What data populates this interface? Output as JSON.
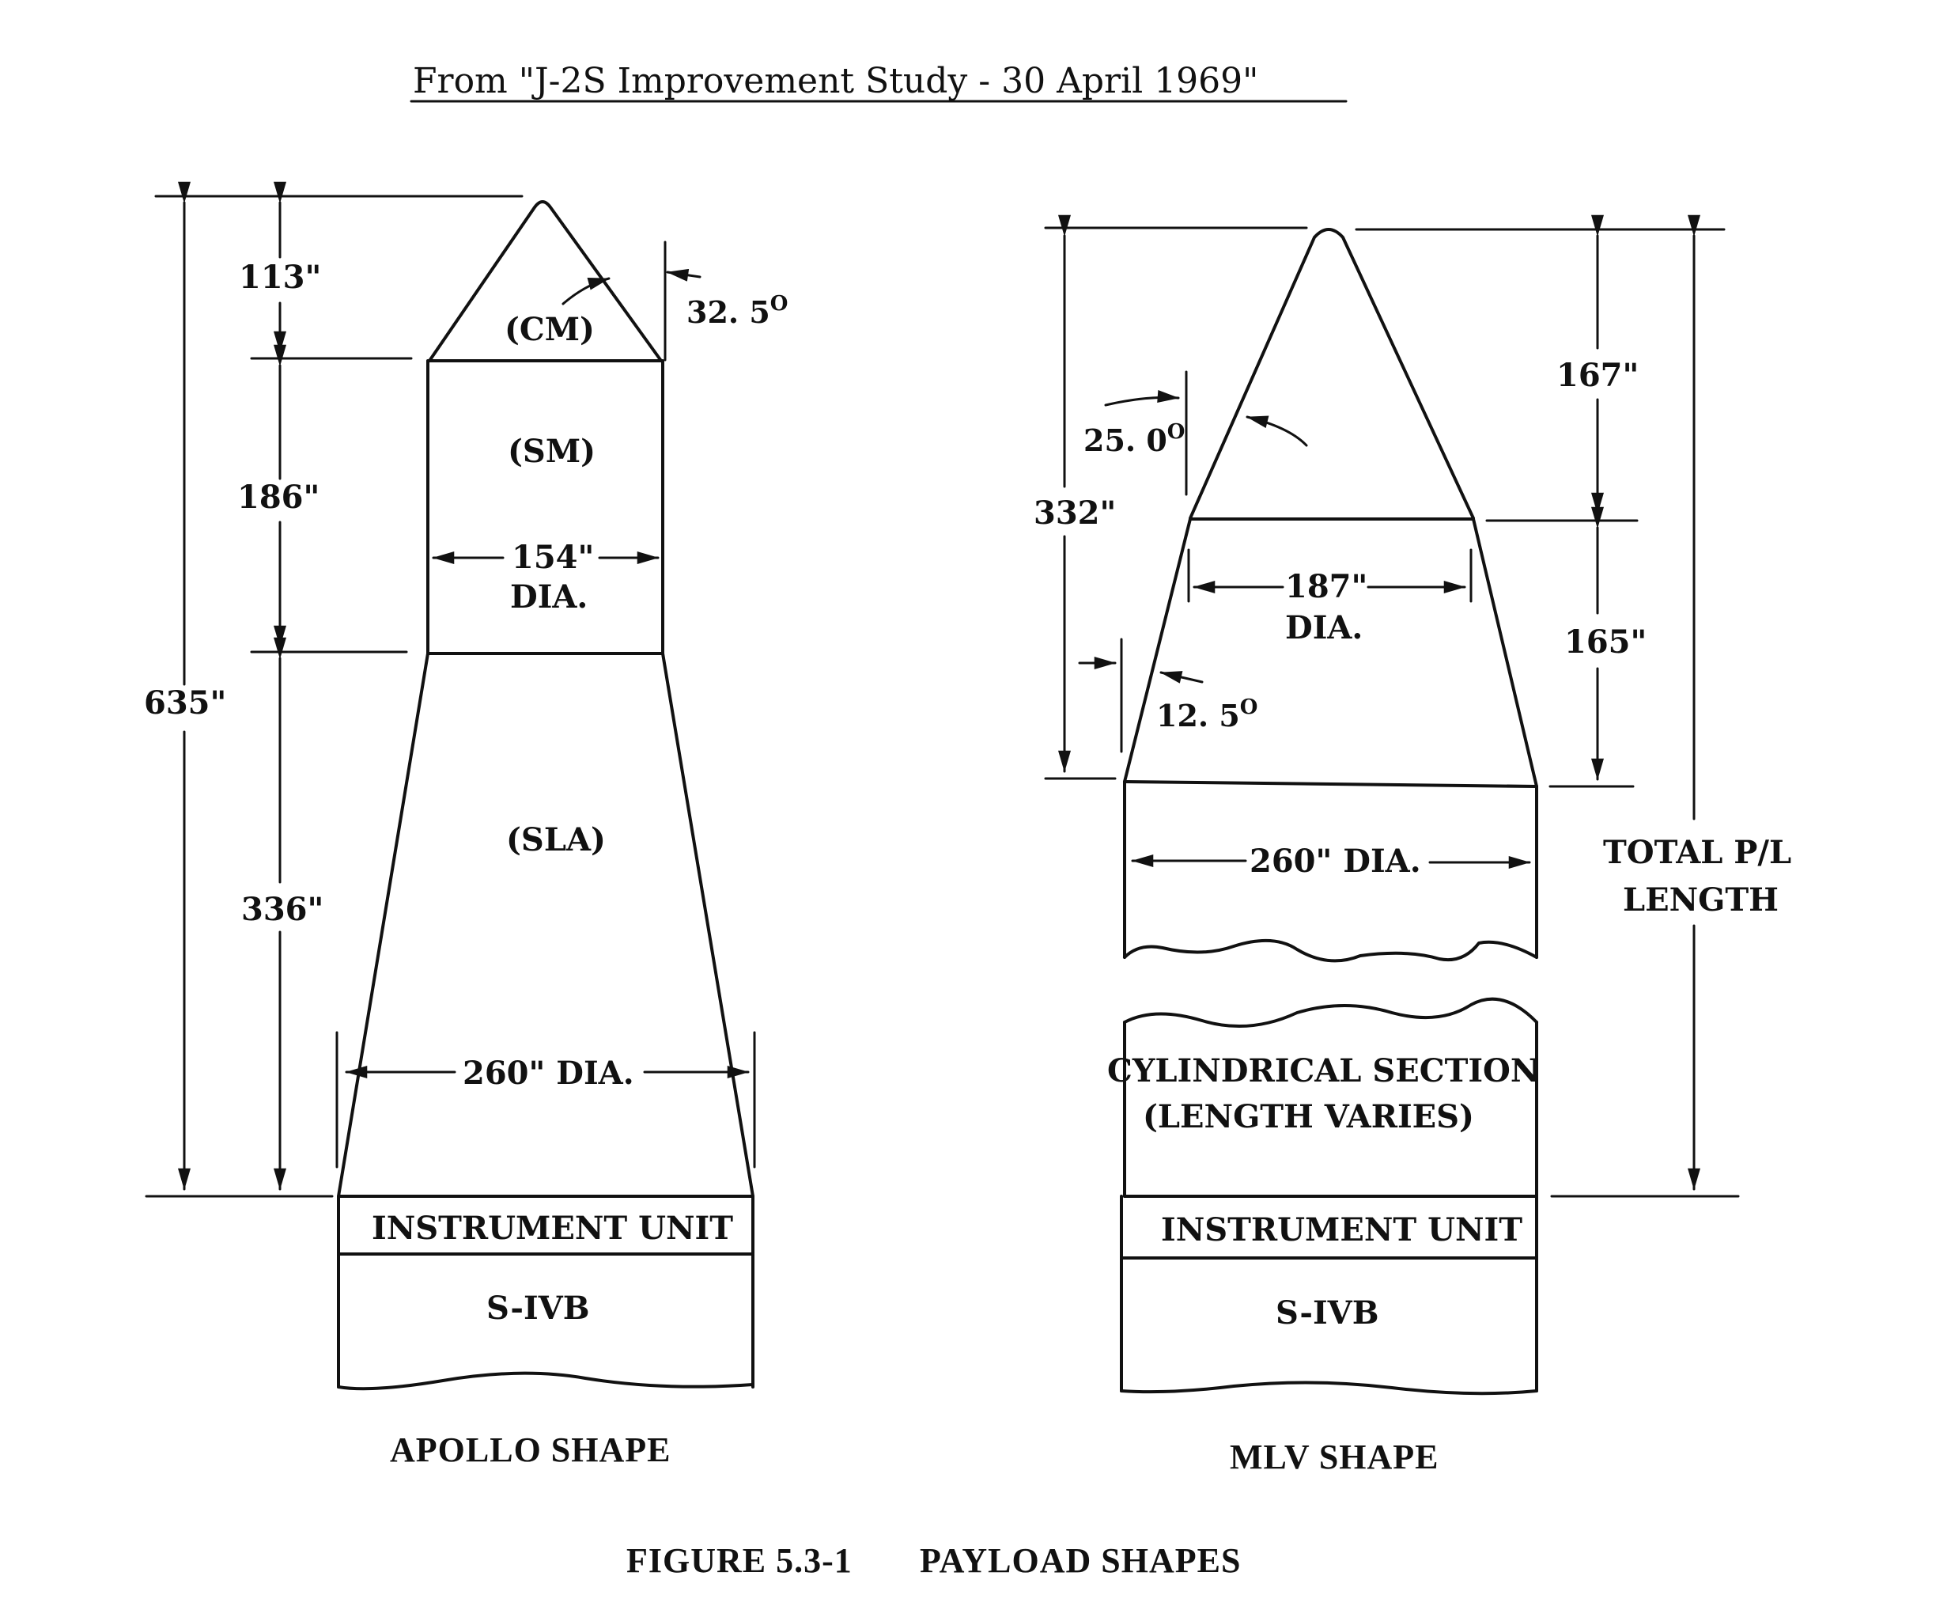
{
  "header": {
    "source_title": "From \"J-2S Improvement Study - 30 April 1969\""
  },
  "apollo": {
    "dim_113": "113\"",
    "dim_186": "186\"",
    "dim_336": "336\"",
    "dim_635": "635\"",
    "angle": "32. 5",
    "angle_sup": "O",
    "label_cm": "(CM)",
    "label_sm": "(SM)",
    "label_sla": "(SLA)",
    "dia_154": "154\"",
    "dia_154_suffix": "DIA.",
    "dia_260": "260\" DIA.",
    "instrument_unit": "INSTRUMENT UNIT",
    "s_ivb": "S-IVB",
    "shape_label": "APOLLO SHAPE"
  },
  "mlv": {
    "dim_332": "332\"",
    "dim_167": "167\"",
    "dim_165": "165\"",
    "angle_25": "25. 0",
    "angle_25_sup": "O",
    "angle_12": "12. 5",
    "angle_12_sup": "O",
    "dia_187": "187\"",
    "dia_187_suffix": "DIA.",
    "dia_260": "260\" DIA.",
    "total_line1": "TOTAL P/L",
    "total_line2": "LENGTH",
    "cyl_line1": "CYLINDRICAL SECTION",
    "cyl_line2": "(LENGTH VARIES)",
    "instrument_unit": "INSTRUMENT UNIT",
    "s_ivb": "S-IVB",
    "shape_label": "MLV SHAPE"
  },
  "caption": {
    "figure_number": "FIGURE 5.3-1",
    "figure_title": "PAYLOAD SHAPES"
  }
}
